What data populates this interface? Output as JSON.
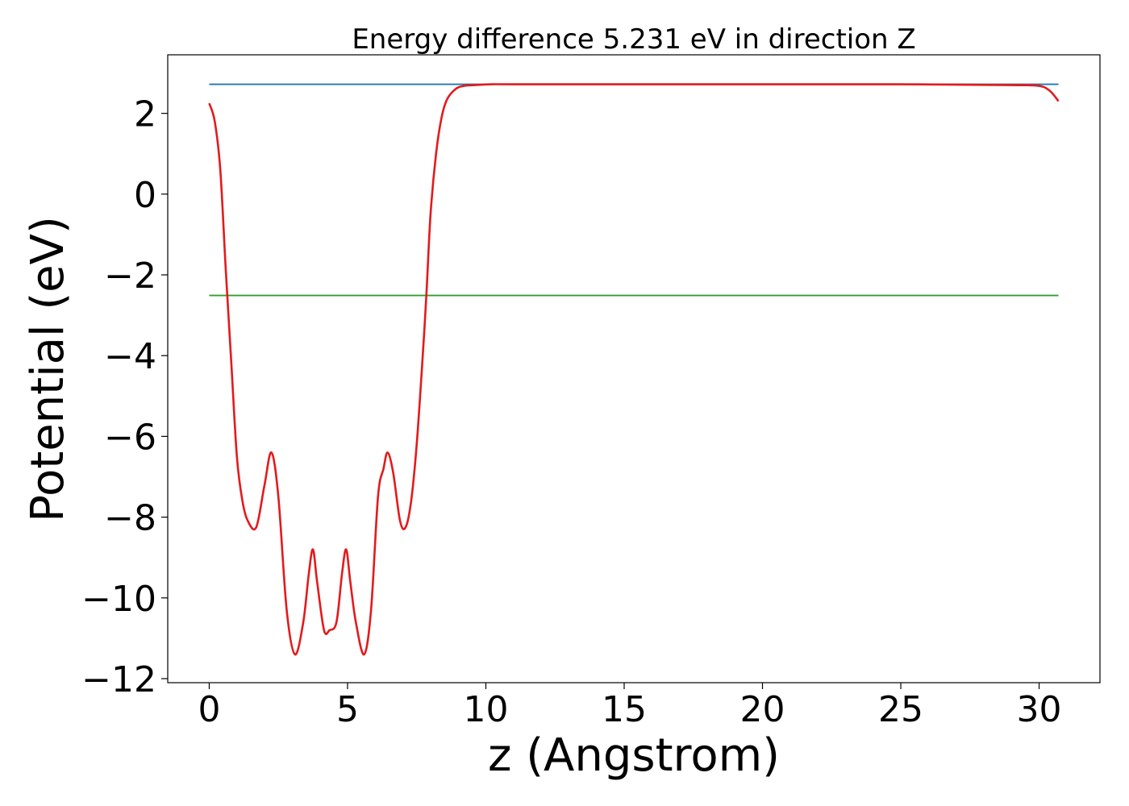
{
  "chart_data": {
    "type": "line",
    "title": "Energy difference 5.231 eV in direction Z",
    "xlabel": "z (Angstrom)",
    "ylabel": "Potential (eV)",
    "xlim": [
      -1.5,
      32.2
    ],
    "ylim": [
      -12.1,
      3.45
    ],
    "xticks": [
      0,
      5,
      10,
      15,
      20,
      25,
      30
    ],
    "yticks": [
      -12,
      -10,
      -8,
      -6,
      -4,
      -2,
      0,
      2
    ],
    "xtick_labels": [
      "0",
      "5",
      "10",
      "15",
      "20",
      "25",
      "30"
    ],
    "ytick_labels": [
      "−12",
      "−10",
      "−8",
      "−6",
      "−4",
      "−2",
      "0",
      "2"
    ],
    "grid": false,
    "series": [
      {
        "color": "#1f77b4",
        "x": [
          0,
          30.7
        ],
        "y": [
          2.72,
          2.72
        ]
      },
      {
        "color": "#2ca02c",
        "x": [
          0,
          30.7
        ],
        "y": [
          -2.51,
          -2.51
        ]
      },
      {
        "color": "#e31a1c",
        "x": [
          0,
          0.2,
          0.4,
          0.6,
          0.8,
          1.0,
          1.2,
          1.4,
          1.7,
          2.0,
          2.25,
          2.5,
          2.8,
          3.1,
          3.4,
          3.6,
          3.75,
          3.9,
          4.15,
          4.35,
          4.6,
          4.8,
          4.95,
          5.1,
          5.3,
          5.6,
          5.85,
          6.1,
          6.3,
          6.45,
          6.65,
          6.9,
          7.1,
          7.3,
          7.5,
          7.7,
          7.85,
          8.0,
          8.2,
          8.4,
          8.6,
          8.9,
          9.2,
          9.6,
          10.2,
          11,
          15,
          20,
          25,
          29,
          30,
          30.4,
          30.7
        ],
        "y": [
          2.25,
          1.8,
          0.6,
          -1.9,
          -4.2,
          -6.5,
          -7.6,
          -8.1,
          -8.25,
          -7.2,
          -6.4,
          -7.5,
          -10.3,
          -11.4,
          -10.6,
          -9.4,
          -8.8,
          -9.6,
          -10.8,
          -10.8,
          -10.6,
          -9.4,
          -8.8,
          -9.6,
          -10.6,
          -11.4,
          -10.3,
          -7.5,
          -6.8,
          -6.4,
          -6.9,
          -8.1,
          -8.25,
          -7.6,
          -6.2,
          -4.2,
          -2.5,
          -0.5,
          1.0,
          1.9,
          2.35,
          2.6,
          2.68,
          2.7,
          2.72,
          2.72,
          2.72,
          2.72,
          2.72,
          2.7,
          2.68,
          2.55,
          2.3
        ]
      }
    ]
  }
}
